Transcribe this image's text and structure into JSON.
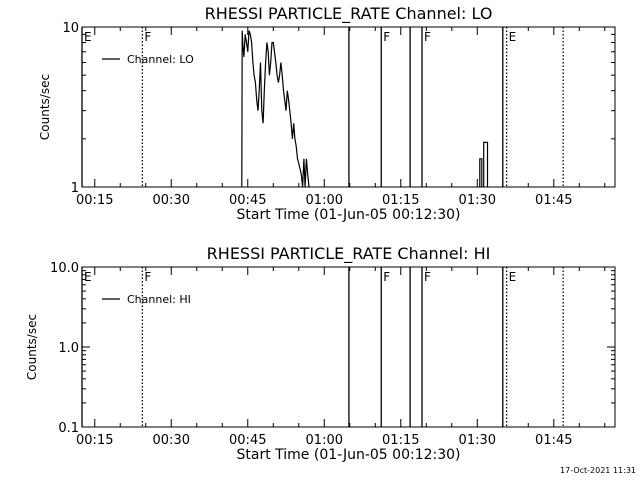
{
  "figure": {
    "timestamp": "17-Oct-2021 11:31"
  },
  "chart_data": [
    {
      "type": "line",
      "title": "RHESSI PARTICLE_RATE Channel: LO",
      "xlabel": "Start Time (01-Jun-05 00:12:30)",
      "ylabel": "Counts/sec",
      "y_scale": "log",
      "ylim": [
        1,
        10
      ],
      "xlim": [
        "00:12:30",
        "01:57:00"
      ],
      "x_ticks": [
        "00:15",
        "00:30",
        "00:45",
        "01:00",
        "01:15",
        "01:30",
        "01:45"
      ],
      "y_ticks": [
        "1",
        "10"
      ],
      "legend": {
        "position": "top-left",
        "entries": [
          "Channel: LO"
        ]
      },
      "series": [
        {
          "name": "Channel: LO",
          "color": "#000000",
          "x": [
            "00:43:50",
            "00:43:55",
            "00:44:00",
            "00:44:15",
            "00:44:30",
            "00:44:45",
            "00:45:00",
            "00:45:15",
            "00:45:30",
            "00:45:45",
            "00:46:00",
            "00:46:15",
            "00:46:30",
            "00:46:45",
            "00:47:00",
            "00:47:15",
            "00:47:30",
            "00:47:45",
            "00:48:00",
            "00:48:15",
            "00:48:30",
            "00:48:45",
            "00:49:00",
            "00:49:15",
            "00:49:30",
            "00:49:45",
            "00:50:00",
            "00:50:15",
            "00:50:30",
            "00:50:45",
            "00:51:00",
            "00:51:15",
            "00:51:30",
            "00:51:45",
            "00:52:00",
            "00:52:15",
            "00:52:30",
            "00:52:45",
            "00:53:00",
            "00:53:15",
            "00:53:30",
            "00:53:45",
            "00:54:00",
            "00:54:15",
            "00:54:30",
            "00:54:45",
            "00:55:00",
            "00:55:15",
            "00:55:30",
            "00:55:45",
            "00:56:00",
            "00:56:15",
            "00:56:30",
            "00:56:45",
            "00:57:00",
            "00:57:10"
          ],
          "y": [
            1,
            9.5,
            8,
            6.5,
            9,
            8,
            7,
            9.5,
            9,
            8,
            6,
            5,
            4.5,
            3.5,
            3,
            4,
            6,
            3,
            2.5,
            4,
            6,
            8,
            7,
            5,
            6,
            8,
            8,
            7,
            6,
            5,
            4.5,
            5,
            6,
            5,
            4,
            3.5,
            3,
            4,
            3.5,
            3,
            2.5,
            2,
            2.5,
            2,
            1.8,
            1.5,
            1.4,
            1.3,
            1.2,
            1,
            1.5,
            1,
            1.5,
            1.2,
            1,
            1
          ]
        }
      ],
      "markers": [
        {
          "time": "00:12:30",
          "label": "E",
          "style": "solid"
        },
        {
          "time": "00:24:20",
          "label": "F",
          "style": "dotted"
        },
        {
          "time": "01:04:50",
          "label": "",
          "style": "solid"
        },
        {
          "time": "01:11:10",
          "label": "F",
          "style": "solid"
        },
        {
          "time": "01:16:50",
          "label": "",
          "style": "solid"
        },
        {
          "time": "01:19:10",
          "label": "F",
          "style": "solid"
        },
        {
          "time": "01:35:00",
          "label": "",
          "style": "solid"
        },
        {
          "time": "01:35:45",
          "label": "E",
          "style": "dotted"
        },
        {
          "time": "01:46:50",
          "label": "",
          "style": "dotted"
        }
      ],
      "gaps": [
        {
          "from": "01:30:30",
          "to": "01:32:00",
          "values": [
            1.5,
            1.9
          ]
        }
      ]
    },
    {
      "type": "line",
      "title": "RHESSI PARTICLE_RATE Channel: HI",
      "xlabel": "Start Time (01-Jun-05 00:12:30)",
      "ylabel": "Counts/sec",
      "y_scale": "log",
      "ylim": [
        0.1,
        10
      ],
      "xlim": [
        "00:12:30",
        "01:57:00"
      ],
      "x_ticks": [
        "00:15",
        "00:30",
        "00:45",
        "01:00",
        "01:15",
        "01:30",
        "01:45"
      ],
      "y_ticks": [
        "0.1",
        "1.0",
        "10.0"
      ],
      "legend": {
        "position": "top-left",
        "entries": [
          "Channel: HI"
        ]
      },
      "series": [
        {
          "name": "Channel: HI",
          "color": "#000000",
          "x": [],
          "y": []
        }
      ],
      "markers": [
        {
          "time": "00:12:30",
          "label": "E",
          "style": "solid"
        },
        {
          "time": "00:24:20",
          "label": "F",
          "style": "dotted"
        },
        {
          "time": "01:04:50",
          "label": "",
          "style": "solid"
        },
        {
          "time": "01:11:10",
          "label": "F",
          "style": "solid"
        },
        {
          "time": "01:16:50",
          "label": "",
          "style": "solid"
        },
        {
          "time": "01:19:10",
          "label": "F",
          "style": "solid"
        },
        {
          "time": "01:35:00",
          "label": "",
          "style": "solid"
        },
        {
          "time": "01:35:45",
          "label": "E",
          "style": "dotted"
        },
        {
          "time": "01:46:50",
          "label": "",
          "style": "dotted"
        }
      ]
    }
  ]
}
